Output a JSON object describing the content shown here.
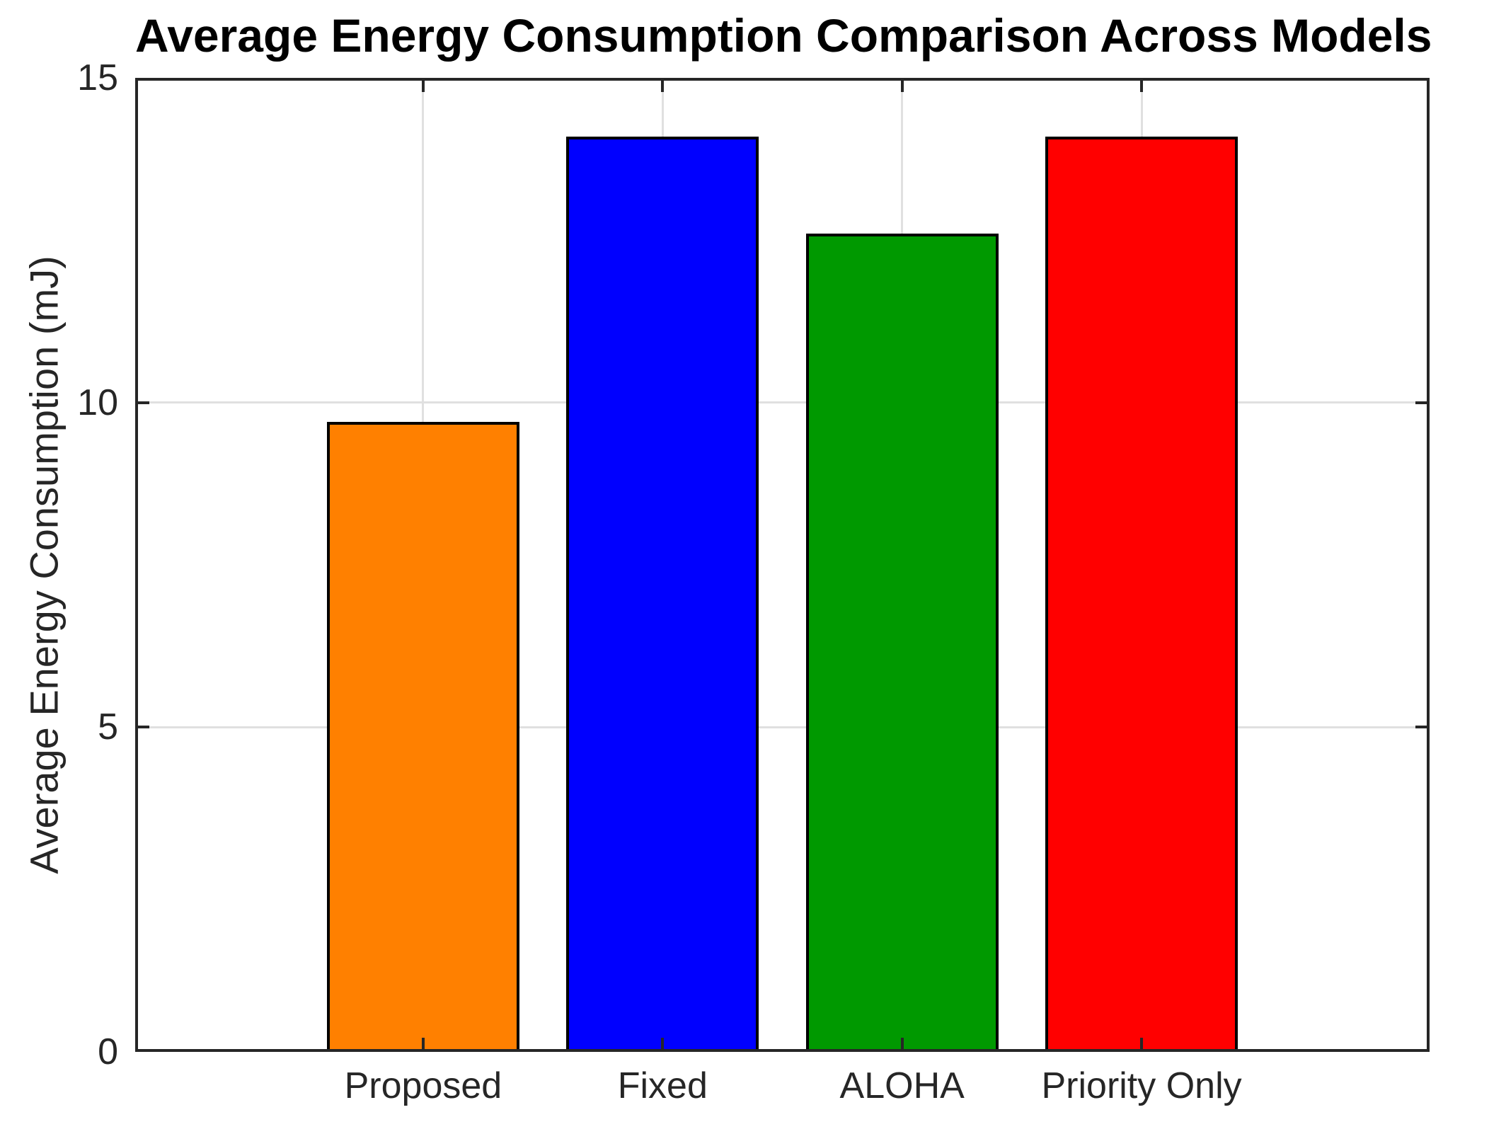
{
  "chart_data": {
    "type": "bar",
    "title": "Average Energy Consumption Comparison Across Models",
    "categories": [
      "Proposed",
      "Fixed",
      "ALOHA",
      "Priority Only"
    ],
    "values": [
      9.7,
      14.1,
      12.6,
      14.1
    ],
    "bar_colors": [
      "#FF8000",
      "#0000FF",
      "#009900",
      "#FF0000"
    ],
    "bar_edge_color": "#000000",
    "xlabel": "",
    "ylabel": "Average Energy Consumption (mJ)",
    "ylim": [
      0,
      15
    ],
    "yticks": [
      0,
      5,
      10,
      15
    ],
    "grid": true,
    "grid_color": "#E0E0E0",
    "axis_color": "#262626",
    "background_color": "#FFFFFF",
    "legend": null
  }
}
